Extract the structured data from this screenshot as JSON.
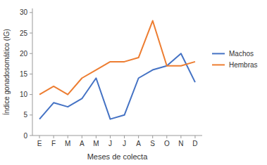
{
  "chart_data": {
    "type": "line",
    "categories": [
      "E",
      "F",
      "M",
      "A",
      "M",
      "J",
      "J",
      "A",
      "S",
      "O",
      "N",
      "D"
    ],
    "series": [
      {
        "name": "Machos",
        "color": "#4472c4",
        "values": [
          4,
          8,
          7,
          9,
          14,
          4,
          5,
          14,
          16,
          17,
          20,
          13
        ]
      },
      {
        "name": "Hembras",
        "color": "#ed7d31",
        "values": [
          10,
          12,
          10,
          14,
          16,
          18,
          18,
          19,
          28,
          17,
          17,
          18
        ]
      }
    ],
    "xlabel": "Meses de colecta",
    "ylabel": "Índice gonadosomático (IG)",
    "ylim": [
      0,
      31
    ],
    "yticks": [
      0,
      5,
      10,
      15,
      20,
      25,
      30
    ],
    "grid": false,
    "legend": "right"
  }
}
